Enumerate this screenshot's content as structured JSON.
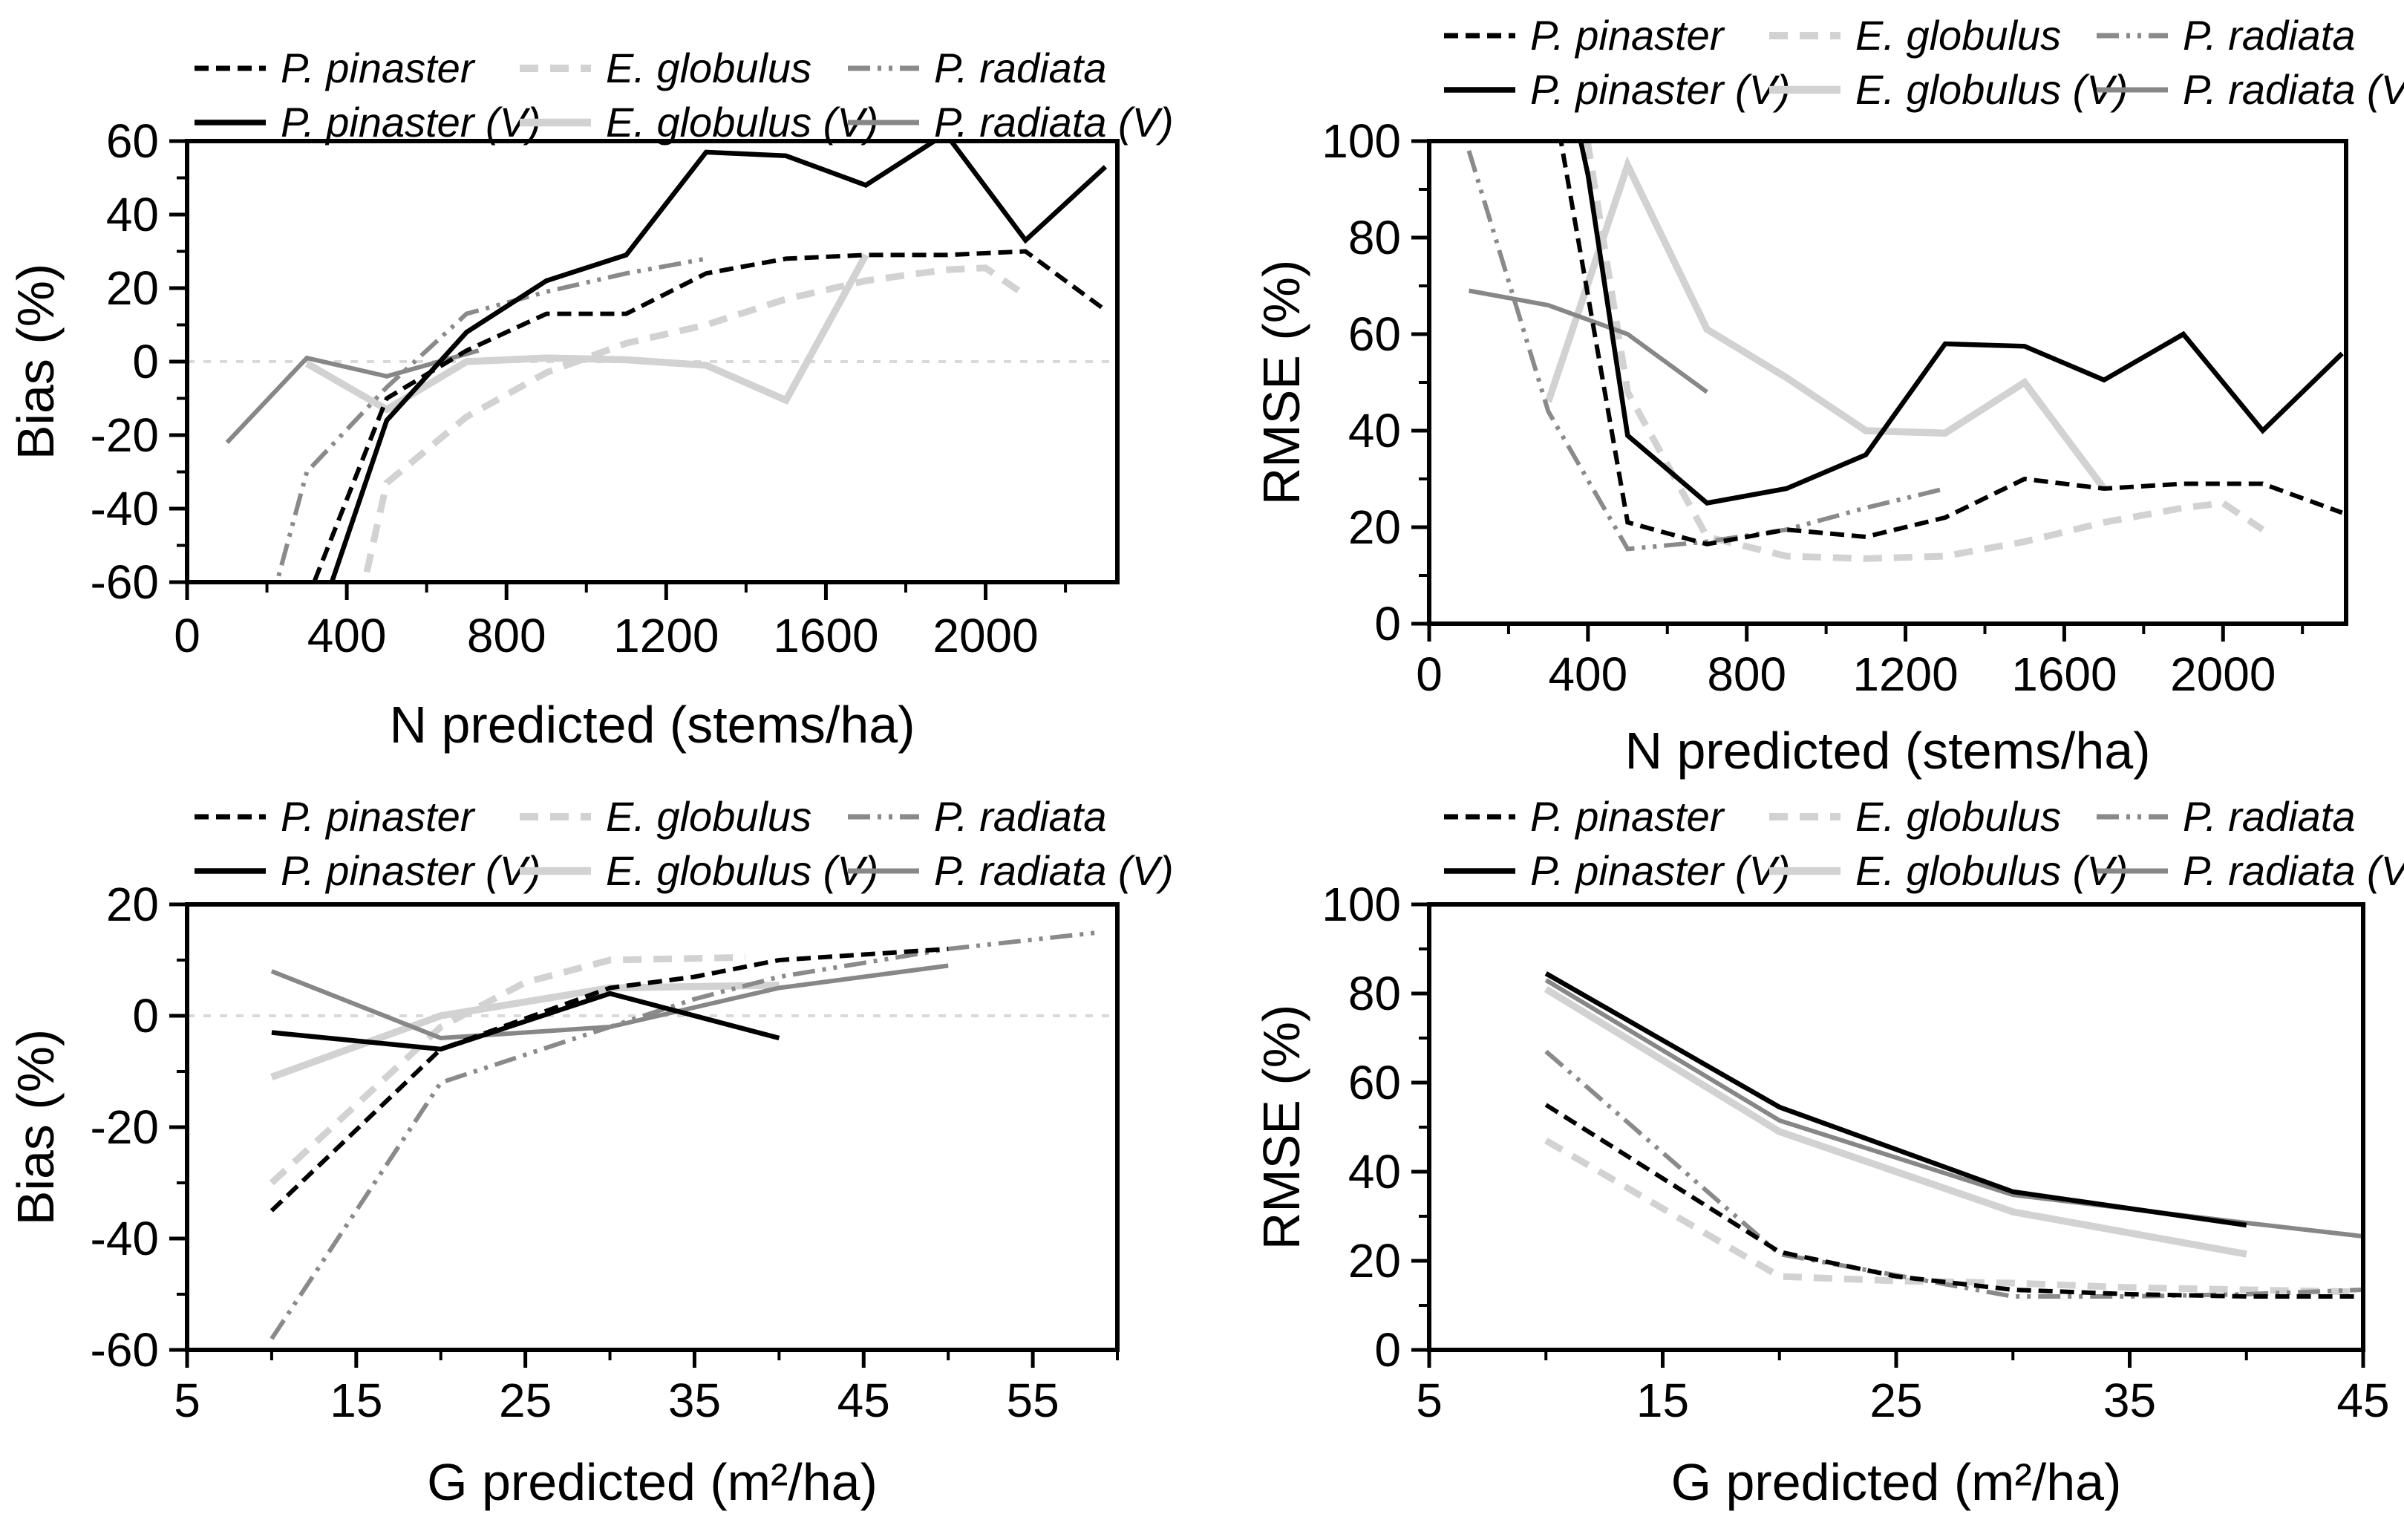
{
  "figure": {
    "description_labels": {
      "bias_axis": "Bias (%)",
      "rmse_axis": "RMSE (%)",
      "n_axis": "N predicted (stems/ha)",
      "g_axis": "G predicted (m²/ha)"
    },
    "colors": {
      "black": "#000000",
      "light_gray": "#d2d2d2",
      "mid_gray": "#8a8a8a",
      "mid_gray_dark": "#878787",
      "zero_line": "#d9d9d9",
      "frame": "#000000",
      "background": "#ffffff"
    }
  },
  "styles": {
    "pp": {
      "label": "P. pinaster",
      "color": "#000000",
      "width": 6,
      "dash": "19 10"
    },
    "eg": {
      "label": "E. globulus",
      "color": "#d2d2d2",
      "width": 9,
      "dash": "25 16"
    },
    "pr": {
      "label": "P. radiata",
      "color": "#8a8a8a",
      "width": 6,
      "dash": "30 10 5 10 5 10"
    },
    "ppv": {
      "label": "P. pinaster (V)",
      "color": "#000000",
      "width": 6.5,
      "dash": null
    },
    "egv": {
      "label": "E. globulus (V)",
      "color": "#d2d2d2",
      "width": 9.5,
      "dash": null
    },
    "prv": {
      "label": "P. radiata (V)",
      "color": "#878787",
      "width": 6,
      "dash": null
    }
  },
  "legend_order": [
    "pp",
    "eg",
    "pr",
    "ppv",
    "egv",
    "prv"
  ],
  "chart_data": [
    {
      "id": "bias-n",
      "type": "line",
      "xlabel": "N predicted (stems/ha)",
      "ylabel": "Bias (%)",
      "xlim": [
        0,
        2330
      ],
      "ylim": [
        -60,
        60
      ],
      "xticks": [
        0,
        400,
        800,
        1200,
        1600,
        2000
      ],
      "xminor": [
        200,
        600,
        1000,
        1400,
        1800,
        2200
      ],
      "yticks": [
        60,
        40,
        20,
        0,
        -20,
        -40,
        -60
      ],
      "yminor": [
        50,
        30,
        10,
        -10,
        -30,
        -50
      ],
      "zero_line": true,
      "grid": false,
      "legend_position": "top",
      "series": [
        {
          "style": "eg",
          "name": "E. globulus",
          "points": [
            [
              300,
              -130
            ],
            [
              500,
              -33
            ],
            [
              700,
              -15
            ],
            [
              900,
              -3
            ],
            [
              1100,
              5
            ],
            [
              1300,
              10
            ],
            [
              1500,
              17
            ],
            [
              1700,
              22
            ],
            [
              1900,
              25
            ],
            [
              2000,
              25.5
            ],
            [
              2100,
              18
            ]
          ]
        },
        {
          "style": "egv",
          "name": "E. globulus (V)",
          "points": [
            [
              300,
              -0.5
            ],
            [
              500,
              -13
            ],
            [
              700,
              0
            ],
            [
              900,
              1
            ],
            [
              1100,
              0.5
            ],
            [
              1300,
              -1
            ],
            [
              1500,
              -10.5
            ],
            [
              1700,
              29
            ]
          ]
        },
        {
          "style": "prv",
          "name": "P. radiata (V)",
          "points": [
            [
              100,
              -22
            ],
            [
              300,
              1
            ],
            [
              500,
              -4
            ],
            [
              730,
              3
            ]
          ]
        },
        {
          "style": "pr",
          "name": "P. radiata",
          "points": [
            [
              100,
              -110
            ],
            [
              300,
              -30
            ],
            [
              500,
              -7
            ],
            [
              700,
              13
            ],
            [
              900,
              19
            ],
            [
              1100,
              24
            ],
            [
              1300,
              28
            ]
          ]
        },
        {
          "style": "pp",
          "name": "P. pinaster",
          "points": [
            [
              300,
              -65
            ],
            [
              500,
              -10
            ],
            [
              700,
              3
            ],
            [
              900,
              13
            ],
            [
              1100,
              13
            ],
            [
              1300,
              24
            ],
            [
              1500,
              28
            ],
            [
              1700,
              29
            ],
            [
              1900,
              29
            ],
            [
              2100,
              30
            ],
            [
              2300,
              14
            ]
          ]
        },
        {
          "style": "ppv",
          "name": "P. pinaster (V)",
          "points": [
            [
              300,
              -80
            ],
            [
              500,
              -16
            ],
            [
              700,
              8
            ],
            [
              900,
              22
            ],
            [
              1100,
              29
            ],
            [
              1300,
              57
            ],
            [
              1500,
              56
            ],
            [
              1700,
              48
            ],
            [
              1900,
              62
            ],
            [
              2100,
              33
            ],
            [
              2300,
              53
            ]
          ]
        }
      ]
    },
    {
      "id": "rmse-n",
      "type": "line",
      "xlabel": "N predicted (stems/ha)",
      "ylabel": "RMSE (%)",
      "xlim": [
        0,
        2310
      ],
      "ylim": [
        0,
        100
      ],
      "xticks": [
        0,
        400,
        800,
        1200,
        1600,
        2000
      ],
      "xminor": [
        200,
        600,
        1000,
        1400,
        1800,
        2200
      ],
      "yticks": [
        100,
        80,
        60,
        40,
        20,
        0
      ],
      "yminor": [
        90,
        70,
        50,
        30,
        10
      ],
      "zero_line": false,
      "grid": false,
      "legend_position": "top",
      "series": [
        {
          "style": "eg",
          "name": "E. globulus",
          "points": [
            [
              350,
              125
            ],
            [
              500,
              48
            ],
            [
              700,
              18
            ],
            [
              900,
              14
            ],
            [
              1100,
              13.5
            ],
            [
              1300,
              14
            ],
            [
              1500,
              17
            ],
            [
              1700,
              21
            ],
            [
              1900,
              24
            ],
            [
              2000,
              25
            ],
            [
              2100,
              19.5
            ]
          ]
        },
        {
          "style": "egv",
          "name": "E. globulus (V)",
          "points": [
            [
              300,
              46
            ],
            [
              500,
              95
            ],
            [
              700,
              61
            ],
            [
              900,
              51
            ],
            [
              1100,
              40
            ],
            [
              1300,
              39.5
            ],
            [
              1500,
              50
            ],
            [
              1700,
              28
            ]
          ]
        },
        {
          "style": "prv",
          "name": "P. radiata (V)",
          "points": [
            [
              100,
              69
            ],
            [
              300,
              66
            ],
            [
              500,
              60
            ],
            [
              700,
              48
            ]
          ]
        },
        {
          "style": "pr",
          "name": "P. radiata",
          "points": [
            [
              100,
              98
            ],
            [
              300,
              44
            ],
            [
              500,
              15.5
            ],
            [
              700,
              17
            ],
            [
              900,
              19.5
            ],
            [
              1100,
              24
            ],
            [
              1300,
              28
            ]
          ]
        },
        {
          "style": "pp",
          "name": "P. pinaster",
          "points": [
            [
              300,
              115
            ],
            [
              500,
              21
            ],
            [
              700,
              16.5
            ],
            [
              900,
              19.5
            ],
            [
              1100,
              18
            ],
            [
              1300,
              22
            ],
            [
              1500,
              30
            ],
            [
              1700,
              28
            ],
            [
              1900,
              29
            ],
            [
              2100,
              29
            ],
            [
              2300,
              23
            ]
          ]
        },
        {
          "style": "ppv",
          "name": "P. pinaster (V)",
          "points": [
            [
              350,
              112
            ],
            [
              400,
              93
            ],
            [
              500,
              39
            ],
            [
              700,
              25
            ],
            [
              900,
              28
            ],
            [
              1100,
              35
            ],
            [
              1300,
              58
            ],
            [
              1500,
              57.5
            ],
            [
              1700,
              50.5
            ],
            [
              1900,
              60
            ],
            [
              2100,
              40
            ],
            [
              2300,
              56
            ]
          ]
        }
      ]
    },
    {
      "id": "bias-g",
      "type": "line",
      "xlabel": "G predicted (m²/ha)",
      "ylabel": "Bias (%)",
      "xlim": [
        5,
        60
      ],
      "ylim": [
        -60,
        20
      ],
      "xticks": [
        5,
        15,
        25,
        35,
        45,
        55
      ],
      "xminor": [
        10,
        20,
        30,
        40,
        50,
        60
      ],
      "yticks": [
        20,
        0,
        -20,
        -40,
        -60
      ],
      "yminor": [
        10,
        -10,
        -30,
        -50
      ],
      "zero_line": true,
      "grid": false,
      "legend_position": "top",
      "series": [
        {
          "style": "eg",
          "name": "E. globulus",
          "points": [
            [
              10,
              -30
            ],
            [
              20,
              -2
            ],
            [
              25,
              6
            ],
            [
              30,
              10
            ],
            [
              38,
              10.5
            ]
          ]
        },
        {
          "style": "egv",
          "name": "E. globulus (V)",
          "points": [
            [
              10,
              -11
            ],
            [
              20,
              0
            ],
            [
              30,
              5
            ],
            [
              40,
              5.5
            ]
          ]
        },
        {
          "style": "prv",
          "name": "P. radiata (V)",
          "points": [
            [
              10,
              8
            ],
            [
              20,
              -4
            ],
            [
              30,
              -2
            ],
            [
              40,
              5
            ],
            [
              50,
              9
            ]
          ]
        },
        {
          "style": "pr",
          "name": "P. radiata",
          "points": [
            [
              10,
              -58
            ],
            [
              20,
              -12
            ],
            [
              30,
              -2
            ],
            [
              35,
              3
            ],
            [
              40,
              7
            ],
            [
              45,
              9.5
            ],
            [
              50,
              12
            ],
            [
              59,
              15
            ]
          ]
        },
        {
          "style": "pp",
          "name": "P. pinaster",
          "points": [
            [
              10,
              -35
            ],
            [
              20,
              -6
            ],
            [
              30,
              5
            ],
            [
              35,
              7
            ],
            [
              40,
              10
            ],
            [
              45,
              11
            ],
            [
              50,
              12
            ]
          ]
        },
        {
          "style": "ppv",
          "name": "P. pinaster (V)",
          "points": [
            [
              10,
              -3
            ],
            [
              20,
              -6
            ],
            [
              30,
              4
            ],
            [
              40,
              -4
            ]
          ]
        }
      ]
    },
    {
      "id": "rmse-g",
      "type": "line",
      "xlabel": "G predicted (m²/ha)",
      "ylabel": "RMSE (%)",
      "xlim": [
        5,
        45
      ],
      "ylim": [
        0,
        100
      ],
      "xticks": [
        5,
        15,
        25,
        35,
        45
      ],
      "xminor": [
        10,
        20,
        30,
        40
      ],
      "yticks": [
        100,
        80,
        60,
        40,
        20,
        0
      ],
      "yminor": [
        90,
        70,
        50,
        30,
        10
      ],
      "zero_line": false,
      "grid": false,
      "legend_position": "top",
      "series": [
        {
          "style": "eg",
          "name": "E. globulus",
          "points": [
            [
              10,
              47
            ],
            [
              20,
              16.5
            ],
            [
              25,
              15.5
            ],
            [
              30,
              15
            ],
            [
              35,
              14
            ],
            [
              40,
              13.5
            ],
            [
              45,
              13
            ]
          ]
        },
        {
          "style": "egv",
          "name": "E. globulus (V)",
          "points": [
            [
              10,
              81
            ],
            [
              20,
              49
            ],
            [
              30,
              31
            ],
            [
              40,
              21.5
            ]
          ]
        },
        {
          "style": "prv",
          "name": "P. radiata (V)",
          "points": [
            [
              10,
              83
            ],
            [
              20,
              51.5
            ],
            [
              30,
              34.8
            ],
            [
              40,
              28.5
            ],
            [
              45,
              25.5
            ]
          ]
        },
        {
          "style": "pr",
          "name": "P. radiata",
          "points": [
            [
              10,
              67
            ],
            [
              20,
              21.5
            ],
            [
              30,
              12
            ],
            [
              35,
              12
            ],
            [
              40,
              12.5
            ],
            [
              45,
              13.5
            ]
          ]
        },
        {
          "style": "pp",
          "name": "P. pinaster",
          "points": [
            [
              10,
              55
            ],
            [
              20,
              22
            ],
            [
              25,
              16.5
            ],
            [
              30,
              13.5
            ],
            [
              35,
              12.5
            ],
            [
              40,
              12
            ],
            [
              45,
              12
            ]
          ]
        },
        {
          "style": "ppv",
          "name": "P. pinaster (V)",
          "points": [
            [
              10,
              84.5
            ],
            [
              20,
              54.5
            ],
            [
              30,
              35.5
            ],
            [
              40,
              28
            ]
          ]
        }
      ]
    }
  ]
}
